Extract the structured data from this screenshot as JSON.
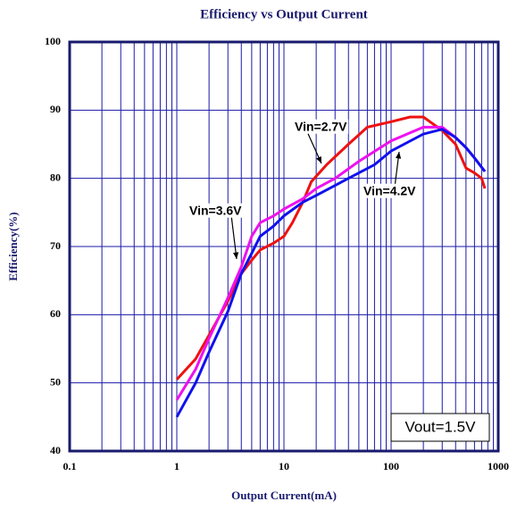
{
  "chart_data": {
    "type": "line",
    "title": "Efficiency vs Output Current",
    "xlabel": "Output Current(mA)",
    "ylabel": "Efficiency(%)",
    "xscale": "log",
    "xlim": [
      0.1,
      1000
    ],
    "xticks": [
      0.1,
      1,
      10,
      100,
      1000
    ],
    "ylim": [
      40,
      100
    ],
    "yticks": [
      40,
      50,
      60,
      70,
      80,
      90,
      100
    ],
    "grid": true,
    "annotations": [
      "Vin=2.7V",
      "Vin=4.2V",
      "Vin=3.6V",
      "Vout=1.5V"
    ],
    "series": [
      {
        "name": "Vin=2.7V",
        "color": "#ee1111",
        "x": [
          1,
          1.5,
          2,
          3,
          4,
          5,
          6,
          8,
          10,
          12,
          15,
          18,
          25,
          40,
          60,
          100,
          150,
          200,
          300,
          400,
          500,
          600,
          700,
          750
        ],
        "values": [
          50.5,
          53.5,
          57,
          62,
          66,
          68,
          69.5,
          70.5,
          71.5,
          73.5,
          76.5,
          79.5,
          82,
          85,
          87.5,
          88.3,
          89,
          89,
          87,
          85,
          81.5,
          80.8,
          80,
          78.5
        ]
      },
      {
        "name": "Vin=3.6V",
        "color": "#ee11ee",
        "x": [
          1,
          1.5,
          2,
          3,
          4,
          5,
          6,
          8,
          10,
          15,
          20,
          30,
          50,
          100,
          200,
          300,
          400,
          500,
          600,
          750
        ],
        "values": [
          47.5,
          52,
          56.5,
          62.5,
          67,
          71.5,
          73.5,
          74.5,
          75.5,
          77,
          78.5,
          80,
          82.5,
          85.5,
          87.5,
          87.5,
          86,
          84.5,
          83,
          81
        ]
      },
      {
        "name": "Vin=4.2V",
        "color": "#1111ee",
        "x": [
          1,
          1.5,
          2,
          3,
          4,
          5,
          6,
          8,
          10,
          15,
          20,
          40,
          70,
          100,
          200,
          300,
          400,
          500,
          600,
          750
        ],
        "values": [
          45,
          50,
          54.5,
          60.5,
          66,
          69,
          71.5,
          73,
          74.5,
          76.5,
          77.5,
          80,
          82,
          84,
          86.5,
          87.2,
          86,
          84.5,
          83,
          81
        ]
      }
    ]
  }
}
